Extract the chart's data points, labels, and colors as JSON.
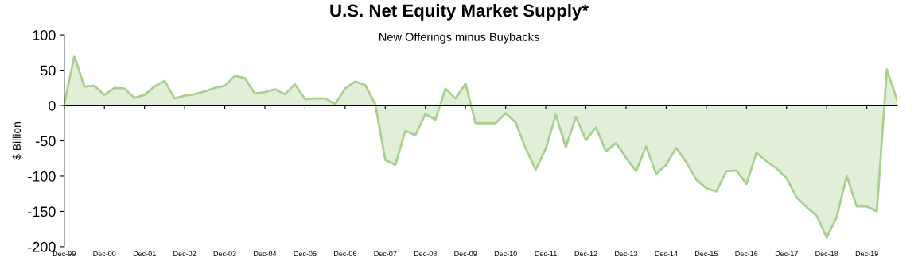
{
  "chart_data": {
    "type": "area",
    "title": "U.S. Net Equity Market Supply*",
    "subtitle": "New Offerings minus Buybacks",
    "ylabel": "$ Billion",
    "categories": [
      "Dec-99",
      null,
      null,
      null,
      "Dec-00",
      null,
      null,
      null,
      "Dec-01",
      null,
      null,
      null,
      "Dec-02",
      null,
      null,
      null,
      "Dec-03",
      null,
      null,
      null,
      "Dec-04",
      null,
      null,
      null,
      "Dec-05",
      null,
      null,
      null,
      "Dec-06",
      null,
      null,
      null,
      "Dec-07",
      null,
      null,
      null,
      "Dec-08",
      null,
      null,
      null,
      "Dec-09",
      null,
      null,
      null,
      "Dec-10",
      null,
      null,
      null,
      "Dec-11",
      null,
      null,
      null,
      "Dec-12",
      null,
      null,
      null,
      "Dec-13",
      null,
      null,
      null,
      "Dec-14",
      null,
      null,
      null,
      "Dec-15",
      null,
      null,
      null,
      "Dec-16",
      null,
      null,
      null,
      "Dec-17",
      null,
      null,
      null,
      "Dec-18",
      null,
      null,
      null,
      "Dec-19",
      null,
      null,
      null
    ],
    "series": [
      {
        "color": "#a9d08e",
        "values": [
          2,
          70,
          27,
          28,
          15,
          25,
          24,
          11,
          15,
          27,
          35,
          10,
          14,
          16,
          20,
          25,
          28,
          42,
          39,
          17,
          19,
          23,
          16,
          30,
          9,
          10,
          10,
          2,
          24,
          34,
          29,
          2,
          -77,
          -84,
          -36,
          -42,
          -12,
          -20,
          24,
          10,
          31,
          -25,
          -25,
          -25,
          -11,
          -24,
          -61,
          -91,
          -61,
          -13,
          -59,
          -16,
          -49,
          -31,
          -65,
          -53,
          -74,
          -93,
          -58,
          -97,
          -84,
          -60,
          -80,
          -105,
          -117,
          -122,
          -93,
          -92,
          -111,
          -67,
          -79,
          -89,
          -103,
          -130,
          -144,
          -156,
          -187,
          -158,
          -100,
          -143,
          -143,
          -150,
          51,
          8
        ]
      }
    ],
    "ylim": [
      -200,
      100
    ],
    "yticks": [
      -200,
      -150,
      -100,
      -50,
      0,
      50,
      100
    ],
    "legend": false
  }
}
